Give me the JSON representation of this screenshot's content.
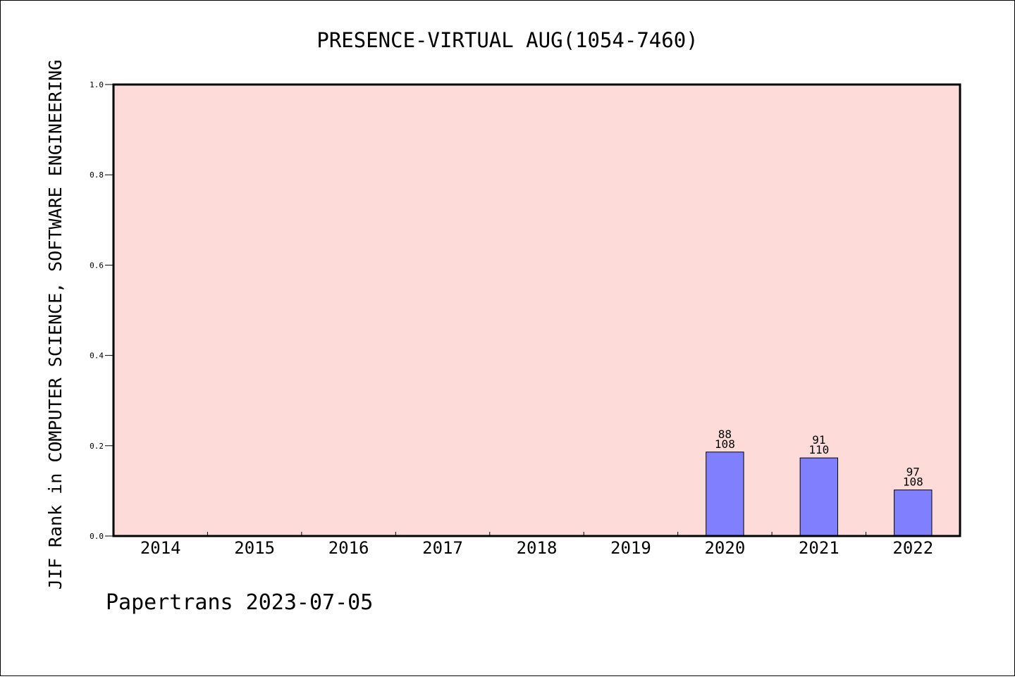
{
  "chart_data": {
    "type": "bar",
    "title": "PRESENCE-VIRTUAL AUG(1054-7460)",
    "xlabel": "",
    "ylabel": "JIF Rank in COMPUTER SCIENCE, SOFTWARE ENGINEERING",
    "ylim": [
      0,
      1.0
    ],
    "yticks": [
      "0.0",
      "0.2",
      "0.4",
      "0.6",
      "0.8",
      "1.0"
    ],
    "categories": [
      "2014",
      "2015",
      "2016",
      "2017",
      "2018",
      "2019",
      "2020",
      "2021",
      "2022"
    ],
    "values": [
      null,
      null,
      null,
      null,
      null,
      null,
      0.186,
      0.173,
      0.102
    ],
    "bar_labels": [
      null,
      null,
      null,
      null,
      null,
      null,
      {
        "rank": "88",
        "total": "108"
      },
      {
        "rank": "91",
        "total": "110"
      },
      {
        "rank": "97",
        "total": "108"
      }
    ],
    "grid": false,
    "legend": "none",
    "colors": {
      "plot_background": "#fddbd8",
      "bar": "#8080ff"
    }
  },
  "footer": "Papertrans 2023-07-05"
}
